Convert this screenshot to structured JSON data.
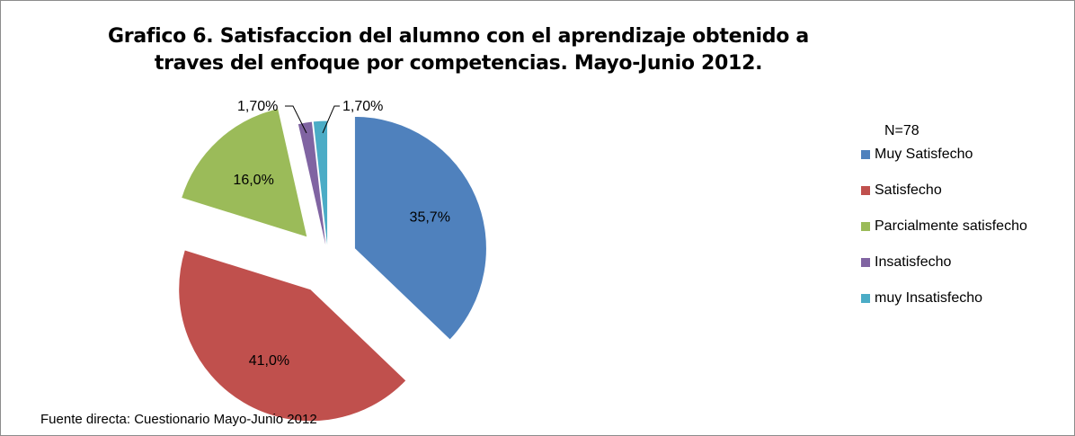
{
  "chart_data": {
    "type": "pie",
    "title": "Grafico 6. Satisfaccion del alumno con el aprendizaje obtenido a traves del enfoque por competencias. Mayo-Junio 2012.",
    "n_label": "N=78",
    "legend_position": "right",
    "exploded": true,
    "slices": [
      {
        "name": "Muy Satisfecho",
        "value": 35.7,
        "label": "35,7%",
        "color": "#4F81BD"
      },
      {
        "name": "Satisfecho",
        "value": 41.0,
        "label": "41,0%",
        "color": "#C0504D"
      },
      {
        "name": "Parcialmente satisfecho",
        "value": 16.0,
        "label": "16,0%",
        "color": "#9BBB59"
      },
      {
        "name": "Insatisfecho",
        "value": 1.7,
        "label": "1,70%",
        "color": "#8064A2"
      },
      {
        "name": "muy Insatisfecho",
        "value": 1.7,
        "label": "1,70%",
        "color": "#4BACC6"
      }
    ]
  },
  "footnote": "Fuente directa: Cuestionario Mayo-Junio 2012"
}
